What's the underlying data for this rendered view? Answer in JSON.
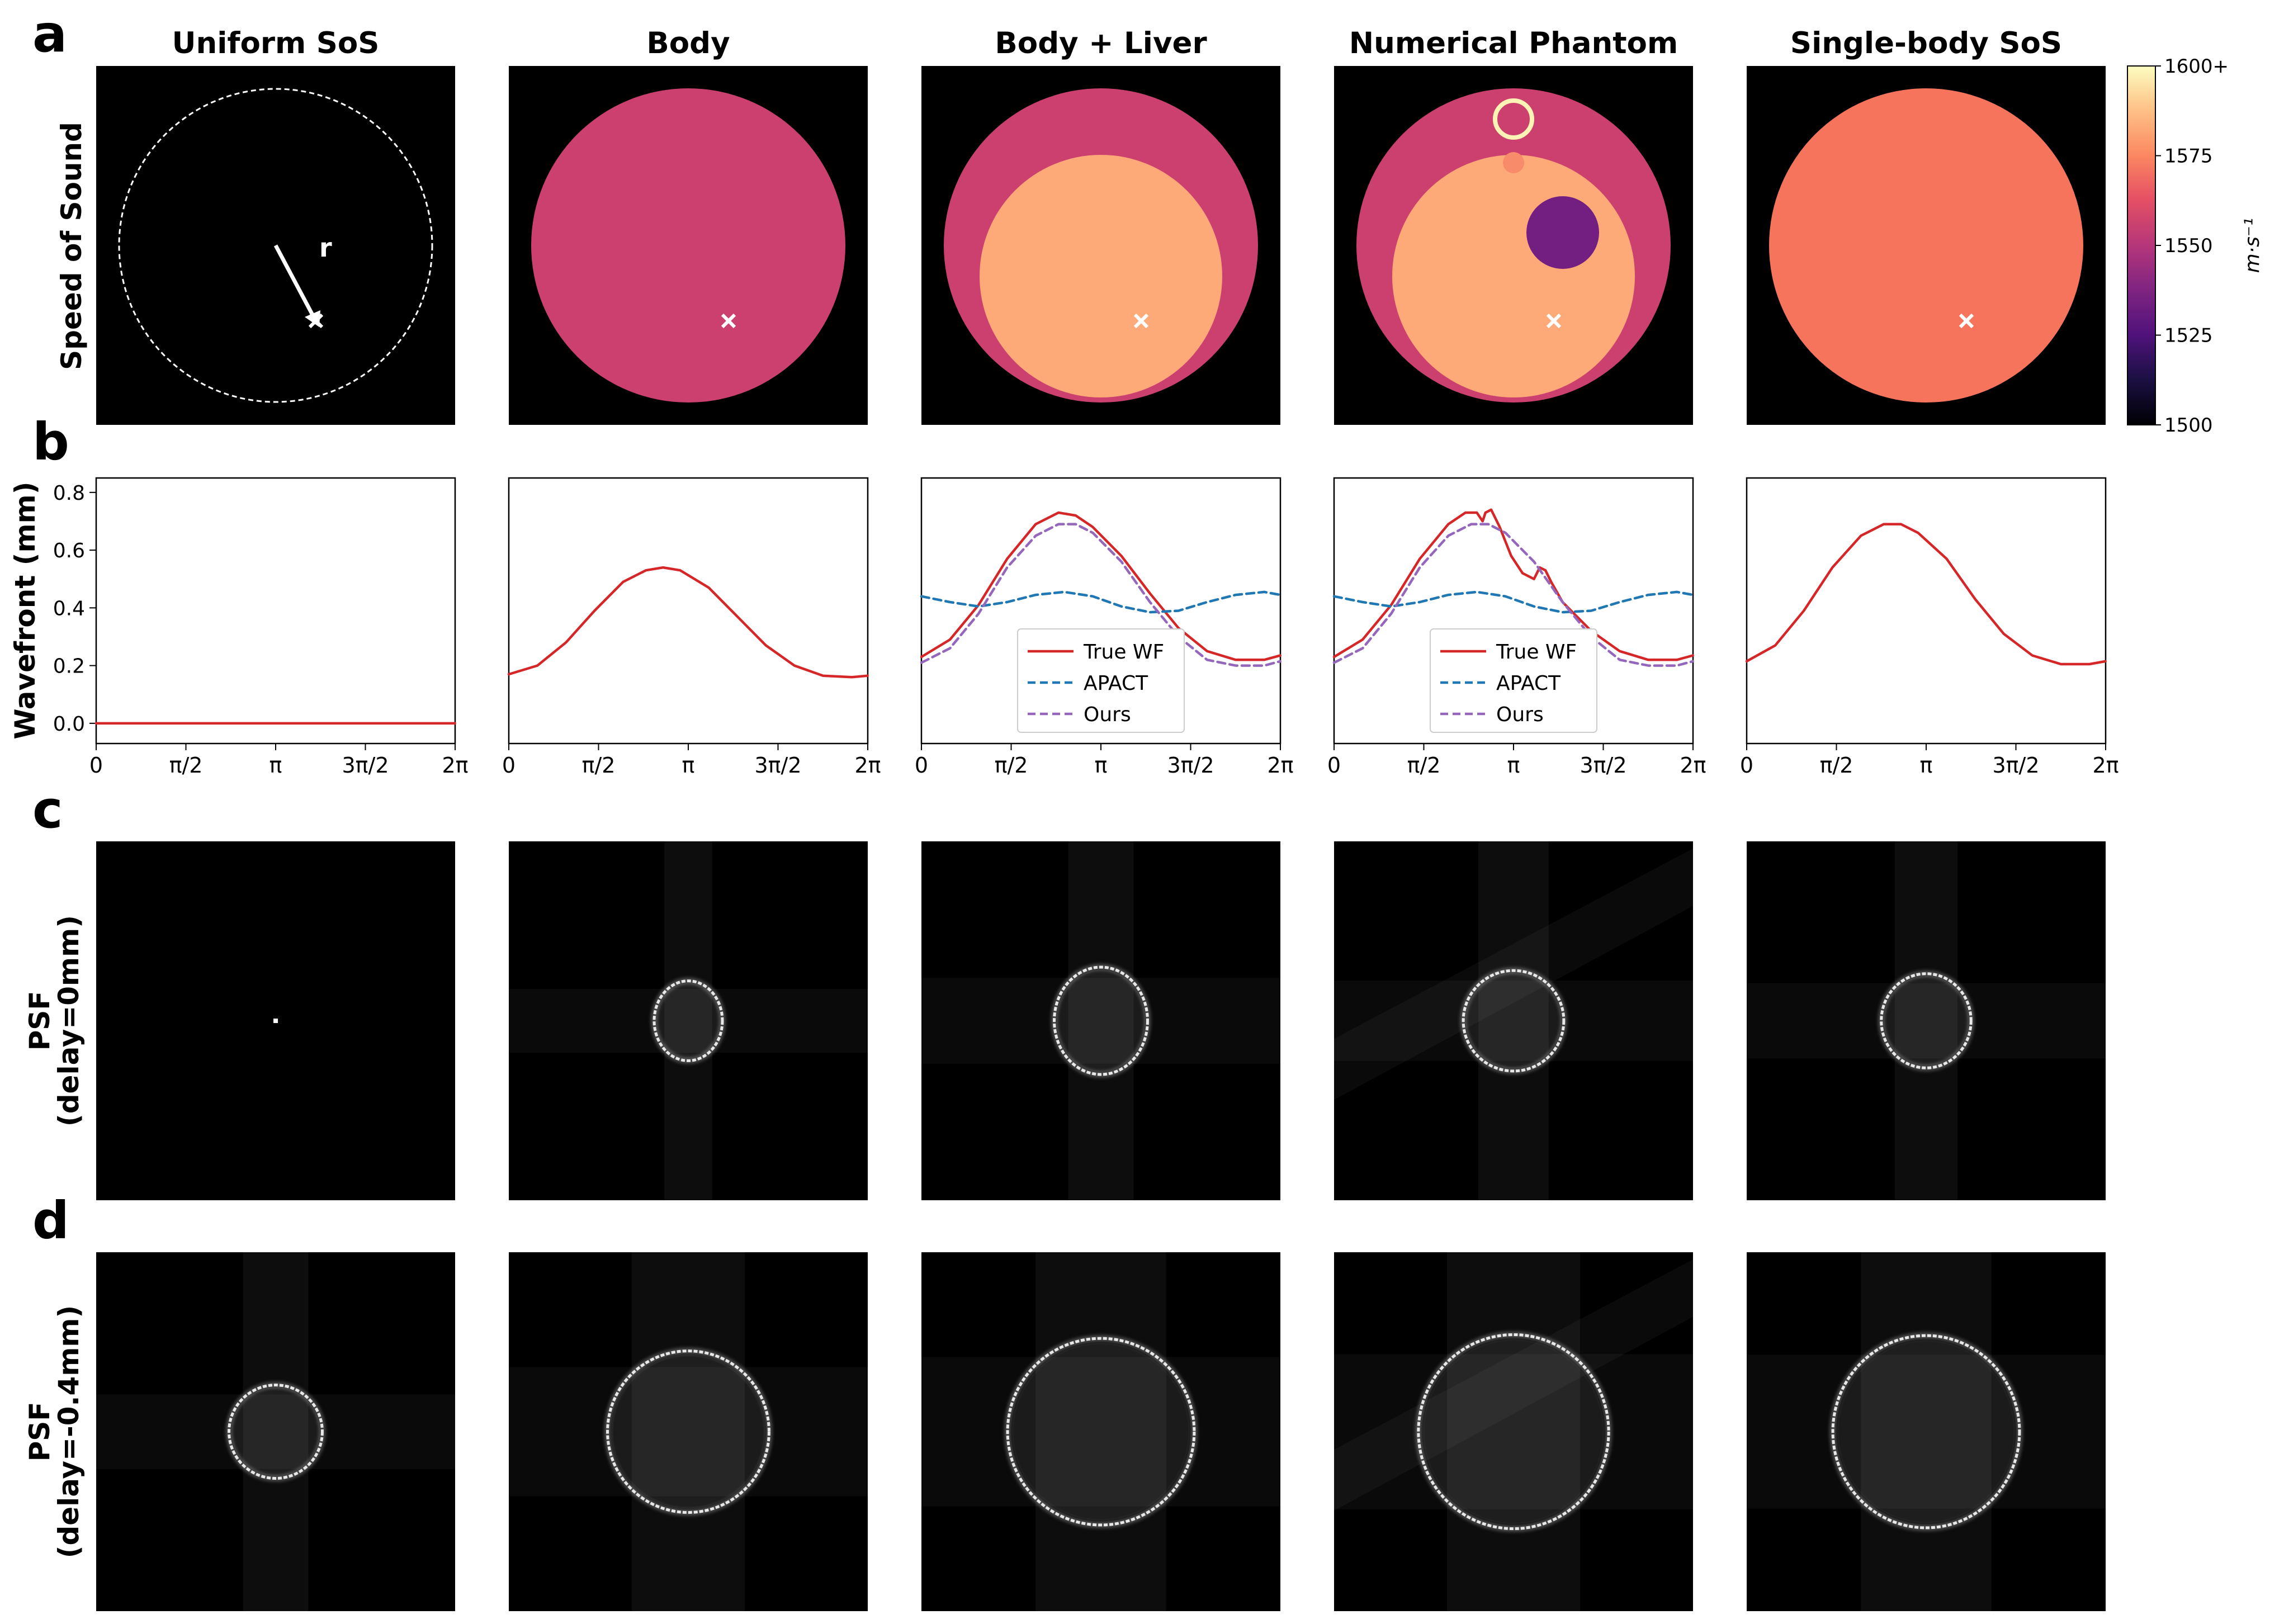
{
  "panel_letters": [
    "a",
    "b",
    "c",
    "d"
  ],
  "column_titles": [
    "Uniform SoS",
    "Body",
    "Body + Liver",
    "Numerical Phantom",
    "Single-body SoS"
  ],
  "row_labels": {
    "sos": "Speed of Sound",
    "wavefront": "Wavefront (mm)",
    "psf0_line1": "PSF",
    "psf0_line2": "(delay=0mm)",
    "psf4_line1": "PSF",
    "psf4_line2": "(delay=-0.4mm)"
  },
  "radius_label": "r",
  "colorbar": {
    "label": "m·s⁻¹",
    "ticks": [
      "1500",
      "1525",
      "1550",
      "1575",
      "1600+"
    ],
    "min": 1500,
    "max": 1600
  },
  "colors": {
    "body": "#cc406f",
    "liver": "#feaa78",
    "tumor": "#721f81",
    "small_spot": "#f88b6a",
    "ring": "#fcf3b5",
    "single_body": "#f6745c",
    "true_wf": "#d62728",
    "apact": "#1f77b4",
    "ours": "#9467bd"
  },
  "sos_maps": [
    {
      "type": "uniform"
    },
    {
      "type": "body",
      "body_sos": 1552
    },
    {
      "type": "body_liver",
      "body_sos": 1552,
      "liver_sos": 1585
    },
    {
      "type": "phantom",
      "body_sos": 1552,
      "liver_sos": 1585,
      "tumor_sos": 1527
    },
    {
      "type": "single_body",
      "body_sos": 1570
    }
  ],
  "chart_data": {
    "type": "line",
    "ylabel": "Wavefront (mm)",
    "ylim": [
      -0.07,
      0.85
    ],
    "yticks": [
      "0.0",
      "0.2",
      "0.4",
      "0.6",
      "0.8"
    ],
    "xticks": [
      "0",
      "π/2",
      "π",
      "3π/2",
      "2π"
    ],
    "legend_placement": "lower-center",
    "panels": [
      {
        "series": [
          {
            "name": "True WF",
            "x": [
              0,
              1.57,
              3.14,
              4.71,
              6.28
            ],
            "values": [
              0.0,
              0.0,
              0.0,
              0.0,
              0.0
            ]
          }
        ]
      },
      {
        "series": [
          {
            "name": "True WF",
            "x": [
              0,
              0.5,
              1.0,
              1.5,
              2.0,
              2.4,
              2.7,
              3.0,
              3.5,
              4.0,
              4.5,
              5.0,
              5.5,
              6.0,
              6.28
            ],
            "values": [
              0.17,
              0.2,
              0.28,
              0.39,
              0.49,
              0.53,
              0.54,
              0.53,
              0.47,
              0.37,
              0.27,
              0.2,
              0.165,
              0.16,
              0.165
            ]
          }
        ]
      },
      {
        "series": [
          {
            "name": "True WF",
            "x": [
              0,
              0.5,
              1.0,
              1.5,
              2.0,
              2.4,
              2.7,
              3.0,
              3.5,
              4.0,
              4.5,
              5.0,
              5.5,
              6.0,
              6.28
            ],
            "values": [
              0.23,
              0.29,
              0.41,
              0.57,
              0.69,
              0.73,
              0.72,
              0.68,
              0.58,
              0.45,
              0.33,
              0.25,
              0.22,
              0.22,
              0.235
            ]
          },
          {
            "name": "APACT",
            "x": [
              0,
              0.5,
              1.0,
              1.5,
              2.0,
              2.5,
              3.0,
              3.5,
              4.0,
              4.5,
              5.0,
              5.5,
              6.0,
              6.28
            ],
            "values": [
              0.44,
              0.42,
              0.405,
              0.42,
              0.445,
              0.455,
              0.44,
              0.405,
              0.385,
              0.39,
              0.42,
              0.445,
              0.455,
              0.445
            ]
          },
          {
            "name": "Ours",
            "x": [
              0,
              0.5,
              1.0,
              1.5,
              2.0,
              2.4,
              2.7,
              3.0,
              3.5,
              4.0,
              4.5,
              5.0,
              5.5,
              6.0,
              6.28
            ],
            "values": [
              0.21,
              0.26,
              0.38,
              0.54,
              0.65,
              0.69,
              0.69,
              0.66,
              0.56,
              0.42,
              0.3,
              0.22,
              0.2,
              0.2,
              0.215
            ]
          }
        ]
      },
      {
        "series": [
          {
            "name": "True WF",
            "x": [
              0,
              0.5,
              1.0,
              1.5,
              2.0,
              2.3,
              2.5,
              2.6,
              2.65,
              2.75,
              2.9,
              3.1,
              3.3,
              3.5,
              3.6,
              3.7,
              3.8,
              4.0,
              4.5,
              5.0,
              5.5,
              6.0,
              6.28
            ],
            "values": [
              0.23,
              0.29,
              0.41,
              0.57,
              0.69,
              0.73,
              0.73,
              0.7,
              0.73,
              0.74,
              0.68,
              0.58,
              0.52,
              0.5,
              0.54,
              0.53,
              0.49,
              0.42,
              0.32,
              0.25,
              0.22,
              0.22,
              0.235
            ]
          },
          {
            "name": "APACT",
            "x": [
              0,
              0.5,
              1.0,
              1.5,
              2.0,
              2.5,
              3.0,
              3.5,
              4.0,
              4.5,
              5.0,
              5.5,
              6.0,
              6.28
            ],
            "values": [
              0.44,
              0.42,
              0.405,
              0.42,
              0.445,
              0.455,
              0.44,
              0.405,
              0.385,
              0.39,
              0.42,
              0.445,
              0.455,
              0.445
            ]
          },
          {
            "name": "Ours",
            "x": [
              0,
              0.5,
              1.0,
              1.5,
              2.0,
              2.4,
              2.7,
              3.0,
              3.5,
              4.0,
              4.5,
              5.0,
              5.5,
              6.0,
              6.28
            ],
            "values": [
              0.21,
              0.26,
              0.38,
              0.54,
              0.65,
              0.69,
              0.69,
              0.66,
              0.56,
              0.42,
              0.3,
              0.22,
              0.2,
              0.2,
              0.215
            ]
          }
        ]
      },
      {
        "series": [
          {
            "name": "True WF",
            "x": [
              0,
              0.5,
              1.0,
              1.5,
              2.0,
              2.4,
              2.7,
              3.0,
              3.5,
              4.0,
              4.5,
              5.0,
              5.5,
              6.0,
              6.28
            ],
            "values": [
              0.215,
              0.27,
              0.39,
              0.54,
              0.65,
              0.69,
              0.69,
              0.66,
              0.57,
              0.43,
              0.31,
              0.235,
              0.205,
              0.205,
              0.215
            ]
          }
        ]
      }
    ]
  },
  "psf_rows": [
    [
      {
        "diameter": 0.01,
        "aspect": 1.0,
        "streaks": "none"
      },
      {
        "diameter": 0.19,
        "aspect": 1.17,
        "streaks": "cross"
      },
      {
        "diameter": 0.26,
        "aspect": 1.15,
        "streaks": "cross"
      },
      {
        "diameter": 0.28,
        "aspect": 1.0,
        "streaks": "diag"
      },
      {
        "diameter": 0.25,
        "aspect": 1.05,
        "streaks": "cross"
      }
    ],
    [
      {
        "diameter": 0.26,
        "aspect": 1.0,
        "streaks": "cross"
      },
      {
        "diameter": 0.45,
        "aspect": 1.0,
        "streaks": "cross"
      },
      {
        "diameter": 0.52,
        "aspect": 1.0,
        "streaks": "cross"
      },
      {
        "diameter": 0.53,
        "aspect": 1.02,
        "streaks": "diag"
      },
      {
        "diameter": 0.52,
        "aspect": 1.03,
        "streaks": "cross"
      }
    ]
  ]
}
